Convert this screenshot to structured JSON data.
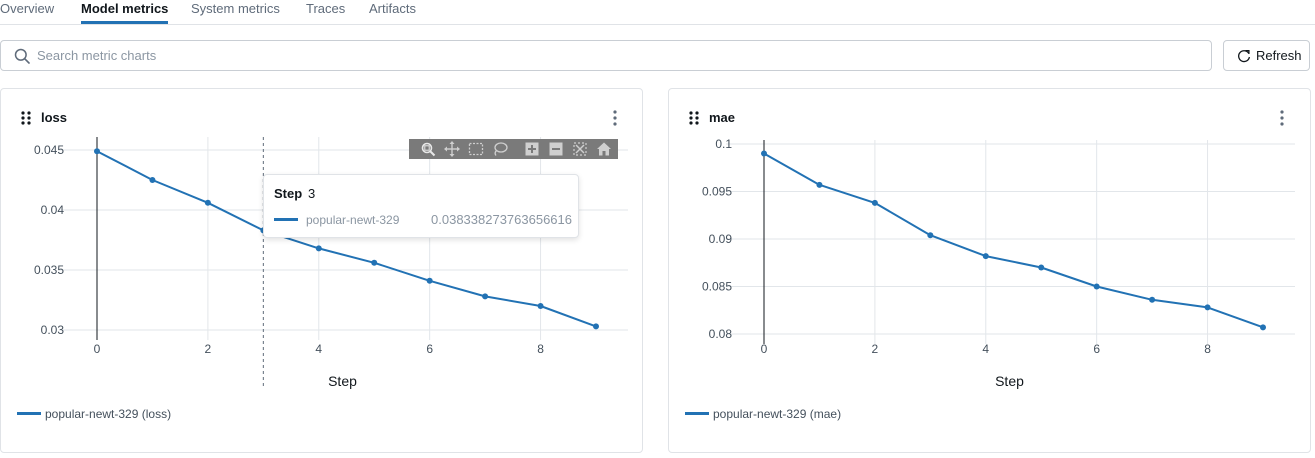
{
  "tabs": [
    {
      "label": "Overview",
      "active": false
    },
    {
      "label": "Model metrics",
      "active": true
    },
    {
      "label": "System metrics",
      "active": false
    },
    {
      "label": "Traces",
      "active": false
    },
    {
      "label": "Artifacts",
      "active": false
    }
  ],
  "search": {
    "placeholder": "Search metric charts",
    "icon": "search-icon"
  },
  "refresh": {
    "label": "Refresh",
    "icon": "refresh-icon"
  },
  "colors": {
    "accent": "#2272b4",
    "grid": "#e2e6ea",
    "axis": "#11171c",
    "toolbar": "#7a7a7a"
  },
  "toolbar_icons": [
    "zoom-icon",
    "pan-icon",
    "box-select-icon",
    "lasso-icon",
    "zoom-in-icon",
    "zoom-out-icon",
    "autoscale-icon",
    "reset-axes-icon"
  ],
  "tooltip": {
    "step_label": "Step",
    "step_value": "3",
    "run": "popular-newt-329",
    "value": "0.038338273763656616"
  },
  "chart_data": [
    {
      "type": "line",
      "title": "loss",
      "xlabel": "Step",
      "ylabel": "",
      "x": [
        0,
        1,
        2,
        3,
        4,
        5,
        6,
        7,
        8,
        9
      ],
      "series": [
        {
          "name": "popular-newt-329 (loss)",
          "values": [
            0.0449,
            0.0425,
            0.0406,
            0.0383,
            0.0368,
            0.0356,
            0.0341,
            0.0328,
            0.032,
            0.0303
          ]
        }
      ],
      "xlim": [
        0,
        9
      ],
      "ylim": [
        0.03,
        0.045
      ],
      "xticks": [
        0,
        2,
        4,
        6,
        8
      ],
      "yticks": [
        0.03,
        0.035,
        0.04,
        0.045
      ],
      "ytick_labels": [
        "0.03",
        "0.035",
        "0.04",
        "0.045"
      ],
      "grid": true,
      "legend_position": "bottom-left",
      "hover_step": 3
    },
    {
      "type": "line",
      "title": "mae",
      "xlabel": "Step",
      "ylabel": "",
      "x": [
        0,
        1,
        2,
        3,
        4,
        5,
        6,
        7,
        8,
        9
      ],
      "series": [
        {
          "name": "popular-newt-329 (mae)",
          "values": [
            0.099,
            0.0957,
            0.0938,
            0.0904,
            0.0882,
            0.087,
            0.085,
            0.0836,
            0.0828,
            0.0807
          ]
        }
      ],
      "xlim": [
        0,
        9
      ],
      "ylim": [
        0.08,
        0.1
      ],
      "xticks": [
        0,
        2,
        4,
        6,
        8
      ],
      "yticks": [
        0.08,
        0.085,
        0.09,
        0.095,
        0.1
      ],
      "ytick_labels": [
        "0.08",
        "0.085",
        "0.09",
        "0.095",
        "0.1"
      ],
      "grid": true,
      "legend_position": "bottom-left"
    }
  ]
}
